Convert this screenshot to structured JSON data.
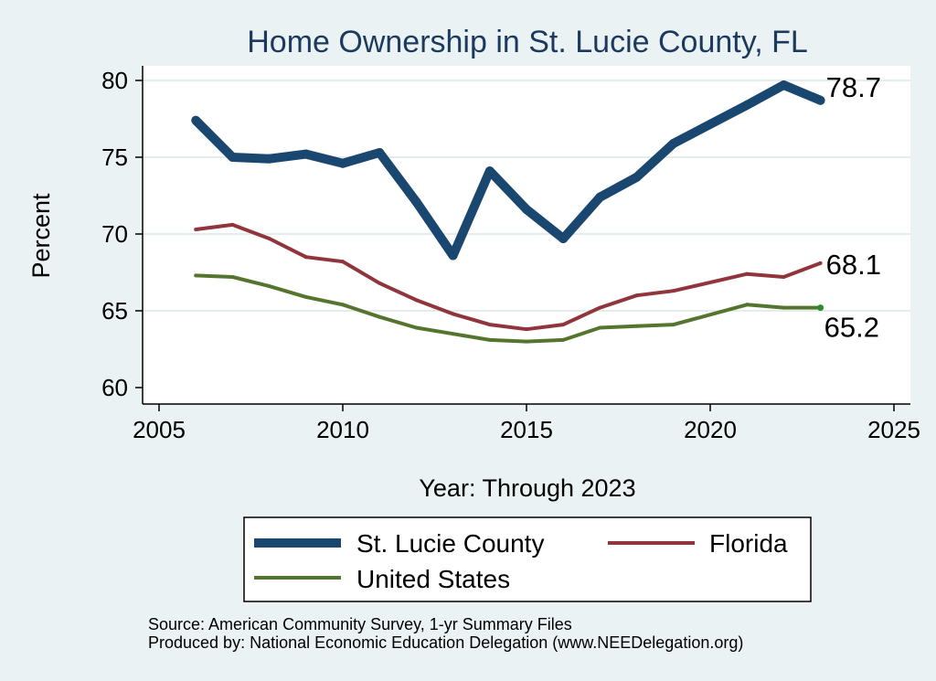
{
  "chart_data": {
    "type": "line",
    "title": "Home Ownership in St. Lucie County, FL",
    "xlabel": "Year: Through 2023",
    "ylabel": "Percent",
    "xlim": [
      2005,
      2025
    ],
    "ylim": [
      60,
      80
    ],
    "x_ticks": [
      2005,
      2010,
      2015,
      2020,
      2025
    ],
    "y_ticks": [
      60,
      65,
      70,
      75,
      80
    ],
    "grid": true,
    "legend_position": "bottom",
    "x": [
      2006,
      2007,
      2008,
      2009,
      2010,
      2011,
      2012,
      2013,
      2014,
      2015,
      2016,
      2017,
      2018,
      2019,
      2021,
      2022,
      2023
    ],
    "series": [
      {
        "name": "St. Lucie County",
        "color": "#1a476f",
        "values": [
          77.4,
          75.0,
          74.9,
          75.2,
          74.6,
          75.3,
          72.1,
          68.6,
          74.1,
          71.6,
          69.7,
          72.4,
          73.7,
          75.9,
          78.4,
          79.7,
          78.7
        ],
        "end_label": "78.7"
      },
      {
        "name": "Florida",
        "color": "#90353b",
        "values": [
          70.3,
          70.6,
          69.7,
          68.5,
          68.2,
          66.8,
          65.7,
          64.8,
          64.1,
          63.8,
          64.1,
          65.2,
          66.0,
          66.3,
          67.4,
          67.2,
          68.1
        ],
        "end_label": "68.1"
      },
      {
        "name": "United States",
        "color": "#55752f",
        "values": [
          67.3,
          67.2,
          66.6,
          65.9,
          65.4,
          64.6,
          63.9,
          63.5,
          63.1,
          63.0,
          63.1,
          63.9,
          64.0,
          64.1,
          65.4,
          65.2,
          65.2
        ],
        "end_label": "65.2"
      }
    ]
  },
  "notes": {
    "source": "Source: American Community Survey, 1-yr Summary Files",
    "produced_by": "Produced by: National Economic Education Delegation (www.NEEDelegation.org)"
  }
}
